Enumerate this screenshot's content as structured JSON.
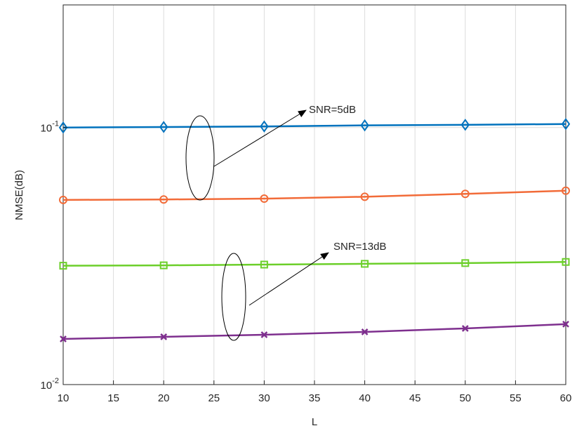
{
  "chart_data": {
    "type": "line",
    "x_label": "L",
    "y_label": "NMSE(dB)",
    "x": [
      10,
      20,
      30,
      40,
      50,
      60
    ],
    "series": [
      {
        "color": "#0072bd",
        "marker": "diamond",
        "values": [
          0.1,
          0.1005,
          0.101,
          0.102,
          0.1025,
          0.1032
        ]
      },
      {
        "color": "#f26b38",
        "marker": "circle",
        "values": [
          0.0523,
          0.0525,
          0.0529,
          0.0538,
          0.0552,
          0.0568
        ]
      },
      {
        "color": "#6ccf2a",
        "marker": "square",
        "values": [
          0.029,
          0.0291,
          0.0293,
          0.0295,
          0.0297,
          0.03
        ]
      },
      {
        "color": "#7e2f8e",
        "marker": "x",
        "values": [
          0.01505,
          0.01534,
          0.01563,
          0.01603,
          0.01654,
          0.01718
        ]
      }
    ],
    "xlim": [
      10,
      60
    ],
    "xticks": [
      10,
      15,
      20,
      25,
      30,
      35,
      40,
      45,
      50,
      55,
      60
    ],
    "ylim": [
      0.01,
      0.3
    ],
    "y_log": true,
    "yticks": [
      {
        "value": 0.01,
        "label": "10^-2"
      },
      {
        "value": 0.1,
        "label": "10^-1"
      }
    ],
    "grid": true,
    "annotations": [
      "SNR=5dB",
      "SNR=13dB"
    ]
  }
}
